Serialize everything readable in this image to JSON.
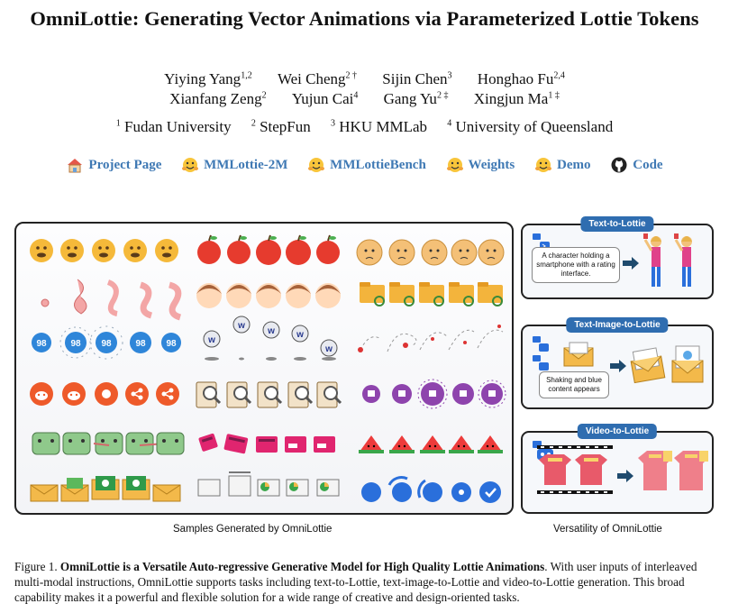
{
  "paper": {
    "title": "OmniLottie: Generating Vector Animations via Parameterized Lottie Tokens",
    "authors_row1": [
      {
        "name": "Yiying Yang",
        "sup": "1,2"
      },
      {
        "name": "Wei Cheng",
        "sup": "2 †"
      },
      {
        "name": "Sijin Chen",
        "sup": "3"
      },
      {
        "name": "Honghao Fu",
        "sup": "2,4"
      }
    ],
    "authors_row2": [
      {
        "name": "Xianfang Zeng",
        "sup": "2"
      },
      {
        "name": "Yujun Cai",
        "sup": "4"
      },
      {
        "name": "Gang Yu",
        "sup": "2 ‡"
      },
      {
        "name": "Xingjun Ma",
        "sup": "1 ‡"
      }
    ],
    "affiliations": [
      {
        "sup": "1",
        "name": "Fudan University"
      },
      {
        "sup": "2",
        "name": "StepFun"
      },
      {
        "sup": "3",
        "name": "HKU MMLab"
      },
      {
        "sup": "4",
        "name": "University of Queensland"
      }
    ],
    "links": [
      {
        "label": "Project Page",
        "icon": "house-icon"
      },
      {
        "label": "MMLottie-2M",
        "icon": "hugging-face-icon"
      },
      {
        "label": "MMLottieBench",
        "icon": "hugging-face-icon"
      },
      {
        "label": "Weights",
        "icon": "hugging-face-icon"
      },
      {
        "label": "Demo",
        "icon": "hugging-face-icon"
      },
      {
        "label": "Code",
        "icon": "github-icon"
      }
    ]
  },
  "figure": {
    "left_caption": "Samples Generated by OmniLottie",
    "right_caption": "Versatility of OmniLottie",
    "badge_98": "98",
    "tasks": [
      {
        "tag": "Text-to-Lottie",
        "prompt": "A character holding a smartphone with a rating interface."
      },
      {
        "tag": "Text-Image-to-Lottie",
        "prompt": "Shaking and blue content appears"
      },
      {
        "tag": "Video-to-Lottie"
      }
    ],
    "caption_label": "Figure 1.",
    "caption_bold": "OmniLottie  is a Versatile Auto-regressive Generative Model for High Quality Lottie Animations",
    "caption_rest": ". With user inputs of interleaved multi-modal instructions, OmniLottie supports tasks including text-to-Lottie, text-image-to-Lottie and video-to-Lottie generation. This broad capability makes it a powerful and flexible solution for a wide range of creative and design-oriented tasks."
  },
  "colors": {
    "link": "#3f79b4",
    "tag": "#2f6db0",
    "emoji": "#f5b93a",
    "apple": "#e63b2e",
    "reddit": "#ee5a2a",
    "pink": "#ff3d8b",
    "twitch": "#8e44ad",
    "frog": "#8fc98b",
    "blue": "#2a6fdb"
  }
}
